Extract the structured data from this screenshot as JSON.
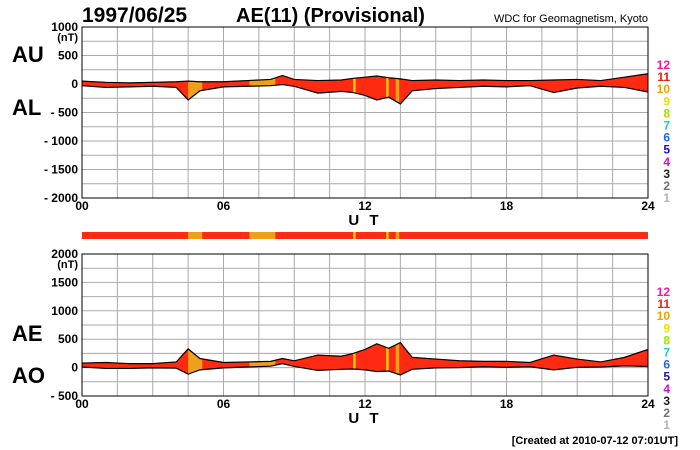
{
  "header": {
    "date": "1997/06/25",
    "title": "AE(11) (Provisional)",
    "credit": "WDC for Geomagnetism, Kyoto"
  },
  "footer": {
    "created": "[Created at 2010-07-12 07:01UT]"
  },
  "legend": [
    {
      "label": "12",
      "color": "#ff1493"
    },
    {
      "label": "11",
      "color": "#e8200c"
    },
    {
      "label": "10",
      "color": "#f0a000"
    },
    {
      "label": "9",
      "color": "#e8e000"
    },
    {
      "label": "8",
      "color": "#a0e000"
    },
    {
      "label": "7",
      "color": "#20c8c8"
    },
    {
      "label": "6",
      "color": "#1e64ff"
    },
    {
      "label": "5",
      "color": "#2010c0"
    },
    {
      "label": "4",
      "color": "#d010d0"
    },
    {
      "label": "3",
      "color": "#202020"
    },
    {
      "label": "2",
      "color": "#707070"
    },
    {
      "label": "1",
      "color": "#b4b4b4"
    }
  ],
  "colors": {
    "fill_11": "#fe2a12",
    "fill_10": "#f0a018",
    "fill_9": "#ffd200",
    "outline": "#000000",
    "grid": "#aaaaaa"
  },
  "chart_data": [
    {
      "type": "area",
      "series": [
        {
          "name": "AU",
          "x": [
            0,
            1,
            2,
            3,
            4,
            4.5,
            5,
            6,
            7,
            8,
            8.5,
            9,
            10,
            11,
            11.5,
            12,
            12.5,
            13,
            13.5,
            14,
            15,
            16,
            17,
            18,
            19,
            20,
            21,
            22,
            23,
            24
          ],
          "values": [
            50,
            30,
            20,
            30,
            40,
            50,
            40,
            40,
            60,
            80,
            150,
            80,
            60,
            70,
            100,
            120,
            140,
            110,
            90,
            60,
            70,
            60,
            70,
            60,
            60,
            70,
            80,
            60,
            120,
            180
          ]
        },
        {
          "name": "AL",
          "x": [
            0,
            1,
            2,
            3,
            4,
            4.5,
            5,
            6,
            7,
            8,
            8.5,
            9,
            10,
            11,
            11.5,
            12,
            12.5,
            13,
            13.5,
            14,
            15,
            16,
            17,
            18,
            19,
            20,
            21,
            22,
            23,
            24
          ],
          "values": [
            -30,
            -60,
            -50,
            -40,
            -60,
            -280,
            -120,
            -50,
            -40,
            -30,
            -10,
            -40,
            -160,
            -130,
            -150,
            -200,
            -280,
            -230,
            -350,
            -120,
            -80,
            -60,
            -40,
            -50,
            -30,
            -150,
            -70,
            -40,
            -60,
            -140
          ]
        }
      ],
      "xlabel": "U T",
      "xticks": [
        "00",
        "06",
        "12",
        "18",
        "24"
      ],
      "xlim": [
        0,
        24
      ],
      "ylabel": "(nT)",
      "yticks": [
        "1000",
        "500",
        "0",
        "- 500",
        "- 1000",
        "- 1500",
        "- 2000"
      ],
      "ylim": [
        -2000,
        1000
      ],
      "side_labels": [
        "AU",
        "AL"
      ],
      "grid": true
    },
    {
      "type": "area",
      "series": [
        {
          "name": "AE",
          "x": [
            0,
            1,
            2,
            3,
            4,
            4.5,
            5,
            6,
            7,
            8,
            8.5,
            9,
            10,
            11,
            11.5,
            12,
            12.5,
            13,
            13.5,
            14,
            15,
            16,
            17,
            18,
            19,
            20,
            21,
            22,
            23,
            24
          ],
          "values": [
            80,
            90,
            70,
            70,
            100,
            330,
            160,
            90,
            100,
            110,
            160,
            120,
            220,
            200,
            250,
            320,
            420,
            340,
            440,
            180,
            150,
            120,
            110,
            110,
            90,
            220,
            150,
            100,
            180,
            320
          ]
        },
        {
          "name": "AO",
          "x": [
            0,
            1,
            2,
            3,
            4,
            4.5,
            5,
            6,
            7,
            8,
            8.5,
            9,
            10,
            11,
            11.5,
            12,
            12.5,
            13,
            13.5,
            14,
            15,
            16,
            17,
            18,
            19,
            20,
            21,
            22,
            23,
            24
          ],
          "values": [
            10,
            -15,
            -15,
            -5,
            -10,
            -115,
            -40,
            -5,
            10,
            25,
            70,
            20,
            -50,
            -30,
            -25,
            -40,
            -70,
            -60,
            -130,
            -30,
            -5,
            0,
            15,
            5,
            15,
            -40,
            5,
            10,
            30,
            20
          ]
        }
      ],
      "xlabel": "U T",
      "xticks": [
        "00",
        "06",
        "12",
        "18",
        "24"
      ],
      "xlim": [
        0,
        24
      ],
      "ylabel": "(nT)",
      "yticks": [
        "2000",
        "1500",
        "1000",
        "500",
        "0",
        "- 500"
      ],
      "ylim": [
        -500,
        2000
      ],
      "side_labels": [
        "AE",
        "AO"
      ],
      "grid": true
    }
  ],
  "quality_bar": {
    "base_level": "11",
    "segments": [
      {
        "start": 4.5,
        "end": 5.1,
        "level": "10"
      },
      {
        "start": 7.1,
        "end": 8.2,
        "level": "10"
      },
      {
        "start": 11.5,
        "end": 11.6,
        "level": "9"
      },
      {
        "start": 12.9,
        "end": 13.0,
        "level": "9"
      },
      {
        "start": 13.3,
        "end": 13.45,
        "level": "10"
      }
    ]
  }
}
